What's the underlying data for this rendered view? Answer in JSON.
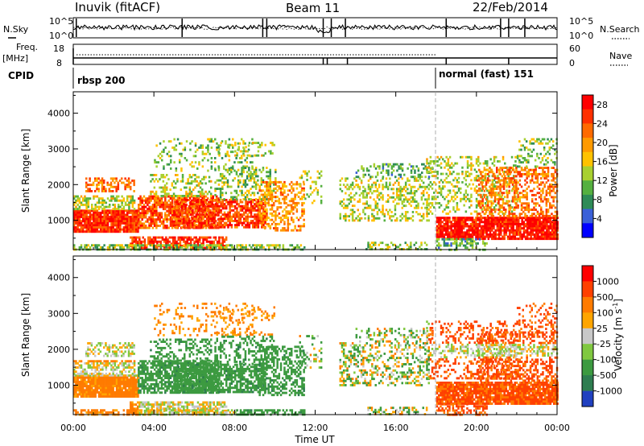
{
  "header": {
    "station": "Inuvik (fitACF)",
    "beam": "Beam 11",
    "date": "22/Feb/2014"
  },
  "side_labels": {
    "nsky": "N.Sky",
    "freq": "Freq.",
    "freq_unit": "[MHz]",
    "cpid": "CPID",
    "nsearch": "N.Search",
    "nave": "Nave"
  },
  "top_axes": {
    "nsky_ticks": [
      "10^5",
      "10^0"
    ],
    "nsearch_ticks": [
      "10^5",
      "10^0"
    ],
    "freq_ticks": [
      "18",
      "8"
    ],
    "nave_ticks": [
      "60",
      "0"
    ]
  },
  "modes": [
    {
      "label": "rbsp 200",
      "start_hour": 0
    },
    {
      "label": "normal (fast) 151",
      "start_hour": 18
    }
  ],
  "chart_data": [
    {
      "type": "heatmap",
      "quantity": "Power",
      "ylabel": "Slant Range [km]",
      "ylim": [
        180,
        4600
      ],
      "yticks": [
        "1000",
        "2000",
        "3000",
        "4000"
      ],
      "xlim_hours": [
        0,
        24
      ],
      "colorbar": {
        "label": "Power [dB]",
        "ticks": [
          "4",
          "8",
          "12",
          "16",
          "20",
          "24",
          "28"
        ],
        "colors": [
          "#0000ff",
          "#3a60d8",
          "#2e8b57",
          "#55b040",
          "#a8d030",
          "#ffc200",
          "#ff9a00",
          "#ff6a00",
          "#ff3000",
          "#ff0000"
        ],
        "range": [
          0,
          30
        ]
      }
    },
    {
      "type": "heatmap",
      "quantity": "Velocity",
      "ylabel": "Slant Range [km]",
      "ylim": [
        180,
        4600
      ],
      "yticks": [
        "1000",
        "2000",
        "3000",
        "4000"
      ],
      "xlim_hours": [
        0,
        24
      ],
      "colorbar": {
        "label": "Velocity [m s^-1]",
        "ticks": [
          "1000",
          "500",
          "100",
          "25",
          "-25",
          "-100",
          "-500",
          "-1000"
        ],
        "colors": [
          "#2040c0",
          "#2e7d50",
          "#3c9a40",
          "#80c840",
          "#c8c8c8",
          "#ffa500",
          "#ff7b00",
          "#ff4000",
          "#ff0000"
        ]
      }
    }
  ],
  "x_axis": {
    "ticks": [
      "00:00",
      "04:00",
      "08:00",
      "12:00",
      "16:00",
      "20:00",
      "00:00"
    ],
    "label": "Time UT"
  }
}
